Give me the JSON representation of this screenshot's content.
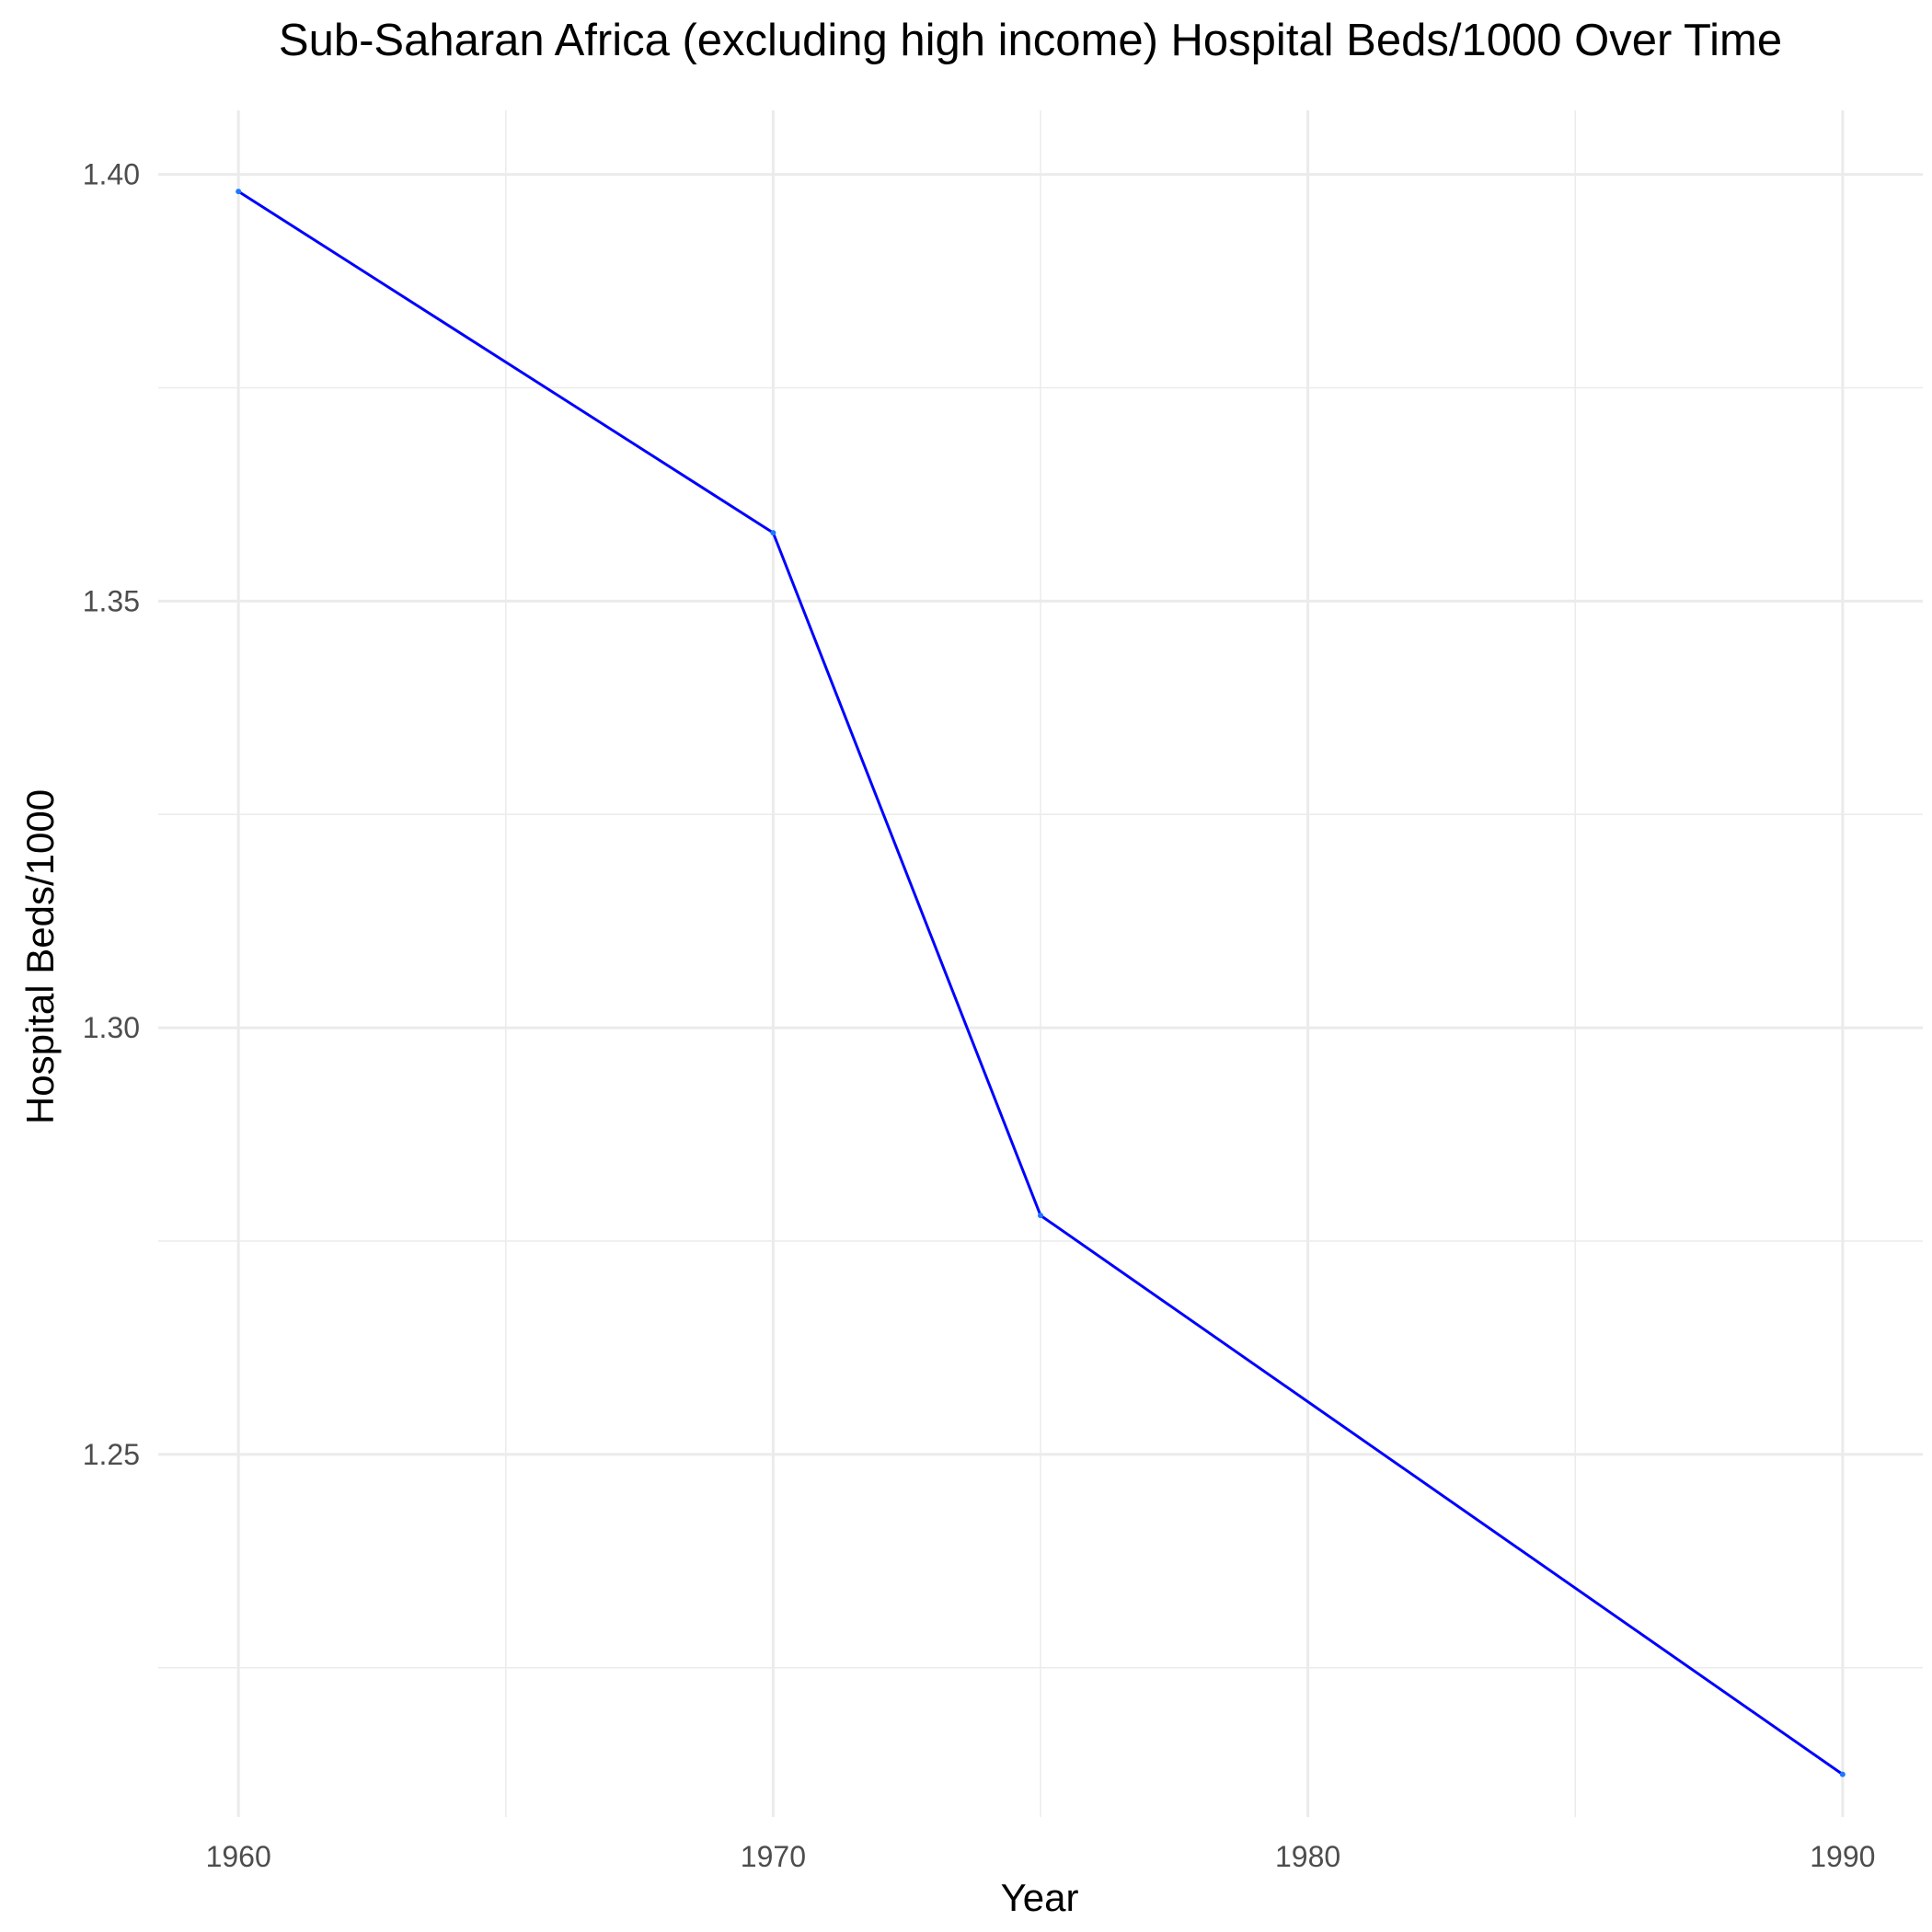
{
  "chart_data": {
    "type": "line",
    "title": "Sub-Saharan Africa (excluding high income) Hospital Beds/1000 Over Time",
    "xlabel": "Year",
    "ylabel": "Hospital Beds/1000",
    "x": [
      1960,
      1970,
      1975,
      1990
    ],
    "series": [
      {
        "values": [
          1.398,
          1.358,
          1.278,
          1.2125
        ]
      }
    ],
    "xlim": [
      1958.5,
      1991.5
    ],
    "ylim": [
      1.2075,
      1.4075
    ],
    "xticks": [
      1960,
      1970,
      1980,
      1990
    ],
    "xtick_labels": [
      "1960",
      "1970",
      "1980",
      "1990"
    ],
    "yticks": [
      1.25,
      1.3,
      1.35,
      1.4
    ],
    "ytick_labels": [
      "1.25",
      "1.30",
      "1.35",
      "1.40"
    ],
    "grid": true,
    "line_color": "#0000ff",
    "point_color": "#1f77ff"
  }
}
